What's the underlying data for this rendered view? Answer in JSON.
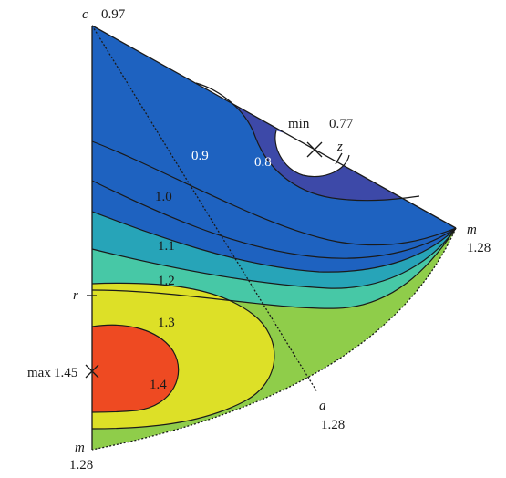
{
  "colors": {
    "band_0_8": "#ffffff",
    "band_0_9": "#3d49a8",
    "band_1_0": "#1e62c0",
    "band_1_1": "#27a4b8",
    "band_1_2": "#47c8a6",
    "band_1_3": "#8fcd4a",
    "band_1_4": "#dde027",
    "band_max": "#ee4a22",
    "line": "#1a1a1a"
  },
  "vertices": {
    "c": {
      "label": "c",
      "value": "0.97"
    },
    "m_top": {
      "label": "m",
      "value": "1.28"
    },
    "m_bottom": {
      "label": "m",
      "value": "1.28"
    },
    "a": {
      "label": "a",
      "value": "1.28"
    },
    "r": {
      "label": "r"
    },
    "z": {
      "label": "z"
    }
  },
  "extrema": {
    "min": {
      "label": "min",
      "value": "0.77"
    },
    "max": {
      "label": "max",
      "value": "1.45"
    }
  },
  "contour_labels": [
    "0.8",
    "0.9",
    "1.0",
    "1.1",
    "1.2",
    "1.3",
    "1.4"
  ]
}
